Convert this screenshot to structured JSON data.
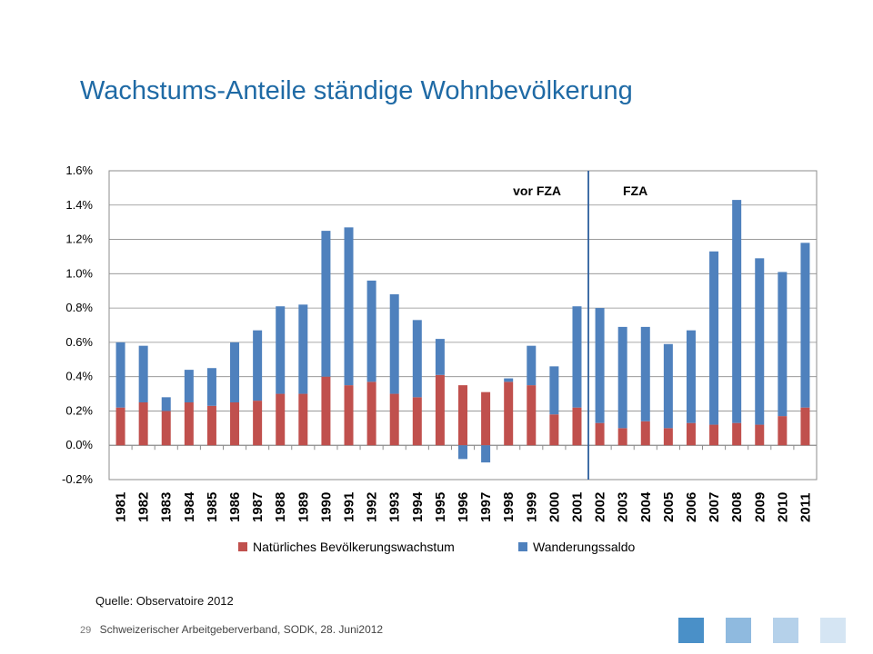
{
  "slide": {
    "title": "Wachstums-Anteile ständige Wohnbevölkerung",
    "source": "Quelle: Observatoire 2012",
    "page_number": "29",
    "footer_text": "Schweizerischer Arbeitgeberverband, SODK, 28. Juni2012",
    "colors": {
      "title": "#1f6aa5",
      "series_natural": "#c0504d",
      "series_migration": "#4f81bd",
      "divider": "#2e5f9e",
      "deco": [
        "#4a90c8",
        "#8fbadf",
        "#b5d1ea",
        "#d5e5f3"
      ]
    }
  },
  "chart_data": {
    "type": "bar",
    "stacked": true,
    "categories": [
      "1981",
      "1982",
      "1983",
      "1984",
      "1985",
      "1986",
      "1987",
      "1988",
      "1989",
      "1990",
      "1991",
      "1992",
      "1993",
      "1994",
      "1995",
      "1996",
      "1997",
      "1998",
      "1999",
      "2000",
      "2001",
      "2002",
      "2003",
      "2004",
      "2005",
      "2006",
      "2007",
      "2008",
      "2009",
      "2010",
      "2011"
    ],
    "series": [
      {
        "name": "Natürliches Bevölkerungswachstum",
        "color": "#c0504d",
        "values": [
          0.22,
          0.25,
          0.2,
          0.25,
          0.23,
          0.25,
          0.26,
          0.3,
          0.3,
          0.4,
          0.35,
          0.37,
          0.3,
          0.28,
          0.41,
          0.35,
          0.31,
          0.37,
          0.35,
          0.18,
          0.22,
          0.13,
          0.1,
          0.14,
          0.1,
          0.13,
          0.12,
          0.13,
          0.12,
          0.17,
          0.22
        ]
      },
      {
        "name": "Wanderungssaldo",
        "color": "#4f81bd",
        "values": [
          0.38,
          0.33,
          0.08,
          0.19,
          0.22,
          0.35,
          0.41,
          0.51,
          0.52,
          0.85,
          0.92,
          0.59,
          0.58,
          0.45,
          0.21,
          -0.08,
          -0.1,
          0.02,
          0.23,
          0.28,
          0.59,
          0.67,
          0.59,
          0.55,
          0.49,
          0.54,
          1.01,
          1.3,
          0.97,
          0.84,
          0.96
        ]
      }
    ],
    "ylim": [
      -0.2,
      1.6
    ],
    "yticks": [
      "-0.2%",
      "0.0%",
      "0.2%",
      "0.4%",
      "0.6%",
      "0.8%",
      "1.0%",
      "1.2%",
      "1.4%",
      "1.6%"
    ],
    "ytick_values": [
      -0.2,
      0.0,
      0.2,
      0.4,
      0.6,
      0.8,
      1.0,
      1.2,
      1.4,
      1.6
    ],
    "grid": true,
    "divider": {
      "after_category": "2001",
      "left_label": "vor FZA",
      "right_label": "FZA"
    },
    "legend_position": "bottom"
  }
}
